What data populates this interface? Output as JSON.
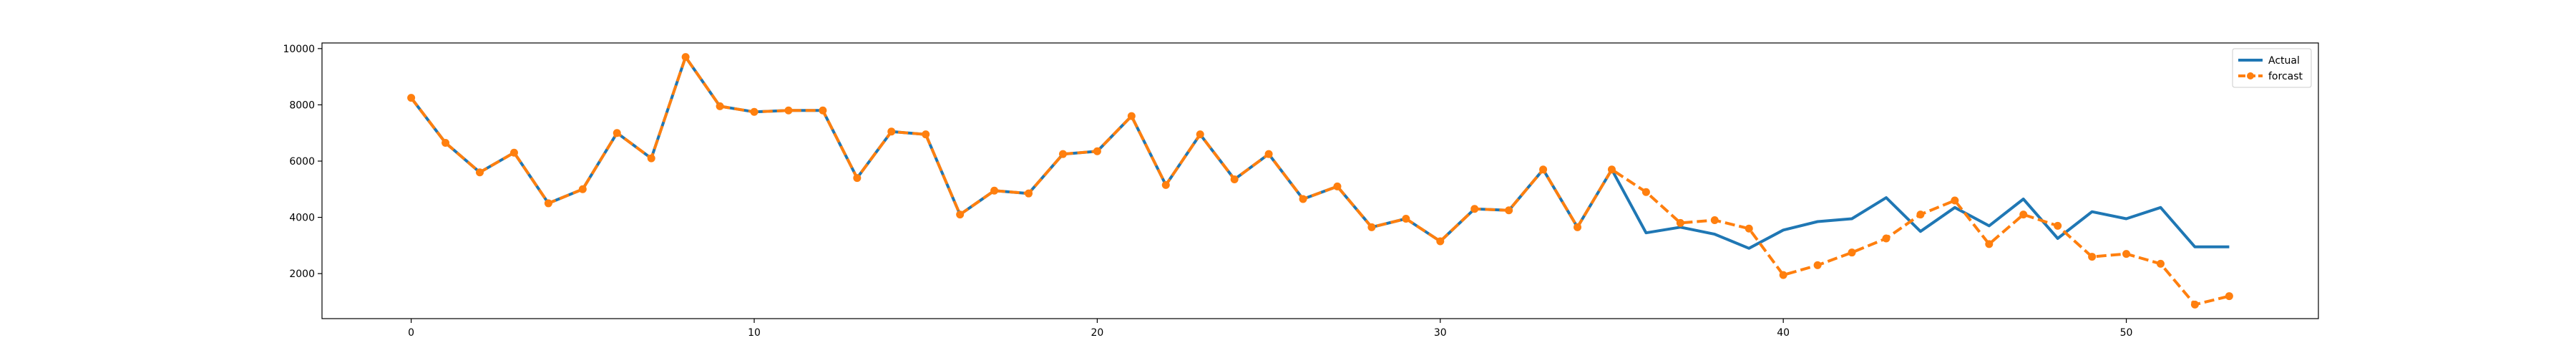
{
  "chart_data": {
    "type": "line",
    "title": "",
    "xlabel": "",
    "ylabel": "",
    "xlim": [
      -2.6,
      55.6
    ],
    "ylim": [
      400,
      10200
    ],
    "xticks": [
      0,
      10,
      20,
      30,
      40,
      50
    ],
    "yticks": [
      2000,
      4000,
      6000,
      8000,
      10000
    ],
    "grid": false,
    "legend_position": "top-right",
    "series": [
      {
        "name": "Actual",
        "color": "#1f77b4",
        "style": "solid",
        "marker": "none",
        "x": [
          0,
          1,
          2,
          3,
          4,
          5,
          6,
          7,
          8,
          9,
          10,
          11,
          12,
          13,
          14,
          15,
          16,
          17,
          18,
          19,
          20,
          21,
          22,
          23,
          24,
          25,
          26,
          27,
          28,
          29,
          30,
          31,
          32,
          33,
          34,
          35,
          36,
          37,
          38,
          39,
          40,
          41,
          42,
          43,
          44,
          45,
          46,
          47,
          48,
          49,
          50,
          51,
          52,
          53
        ],
        "values": [
          8250,
          6650,
          5600,
          6300,
          4500,
          5000,
          7000,
          6100,
          9700,
          7950,
          7750,
          7800,
          7800,
          5400,
          7050,
          6950,
          4100,
          4950,
          4850,
          6250,
          6350,
          7600,
          5150,
          6950,
          5350,
          6250,
          4650,
          5100,
          3650,
          3950,
          3150,
          4300,
          4250,
          5700,
          3650,
          5700,
          3450,
          3650,
          3400,
          2900,
          3550,
          3850,
          3950,
          4700,
          3500,
          4350,
          3700,
          4650,
          3250,
          4200,
          3950,
          4350,
          2950,
          2950
        ]
      },
      {
        "name": "forcast",
        "color": "#ff7f0e",
        "style": "dashed",
        "marker": "circle",
        "x": [
          0,
          1,
          2,
          3,
          4,
          5,
          6,
          7,
          8,
          9,
          10,
          11,
          12,
          13,
          14,
          15,
          16,
          17,
          18,
          19,
          20,
          21,
          22,
          23,
          24,
          25,
          26,
          27,
          28,
          29,
          30,
          31,
          32,
          33,
          34,
          35,
          36,
          37,
          38,
          39,
          40,
          41,
          42,
          43,
          44,
          45,
          46,
          47,
          48,
          49,
          50,
          51,
          52,
          53
        ],
        "values": [
          8250,
          6650,
          5600,
          6300,
          4500,
          5000,
          7000,
          6100,
          9700,
          7950,
          7750,
          7800,
          7800,
          5400,
          7050,
          6950,
          4100,
          4950,
          4850,
          6250,
          6350,
          7600,
          5150,
          6950,
          5350,
          6250,
          4650,
          5100,
          3650,
          3950,
          3150,
          4300,
          4250,
          5700,
          3650,
          5700,
          4900,
          3800,
          3900,
          3600,
          1950,
          2300,
          2750,
          3250,
          4100,
          4600,
          3050,
          4100,
          3700,
          2600,
          2700,
          2350,
          900,
          1200
        ]
      }
    ]
  }
}
